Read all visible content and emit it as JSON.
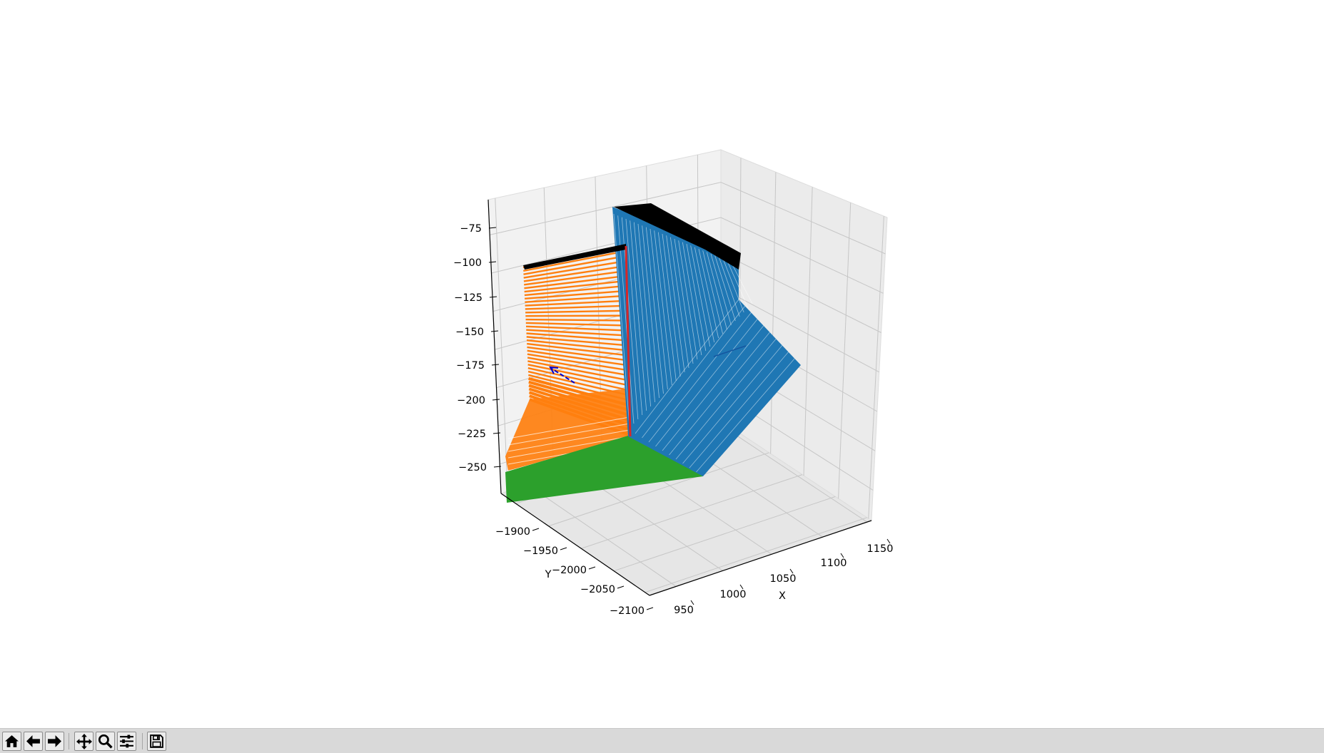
{
  "chart_data": {
    "type": "scatter",
    "projection": "3d",
    "xlabel": "X",
    "ylabel": "Y",
    "zlabel": "",
    "x_ticks": [
      "950",
      "1000",
      "1050",
      "1100",
      "1150"
    ],
    "y_ticks": [
      "−1900",
      "−1950",
      "−2000",
      "−2050",
      "−2100"
    ],
    "z_ticks": [
      "−75",
      "−100",
      "−125",
      "−150",
      "−175",
      "−200",
      "−225",
      "−250"
    ],
    "xlim": [
      930,
      1165
    ],
    "ylim": [
      -2110,
      -1880
    ],
    "zlim": [
      -265,
      -60
    ],
    "grid": true,
    "pane_color": "#f2f2f2",
    "series": [
      {
        "color": "#1f77b4"
      },
      {
        "color": "#ff7f0e"
      },
      {
        "color": "#2ca02c"
      },
      {
        "color": "#000000"
      },
      {
        "color": "#d62728"
      },
      {
        "color": "#0000cc"
      }
    ]
  },
  "toolbar": {
    "buttons": [
      {
        "icon": "home-icon"
      },
      {
        "icon": "back-arrow-icon"
      },
      {
        "icon": "forward-arrow-icon"
      },
      {
        "icon": "pan-icon"
      },
      {
        "icon": "zoom-icon"
      },
      {
        "icon": "configure-subplots-icon"
      },
      {
        "icon": "save-icon"
      }
    ]
  }
}
